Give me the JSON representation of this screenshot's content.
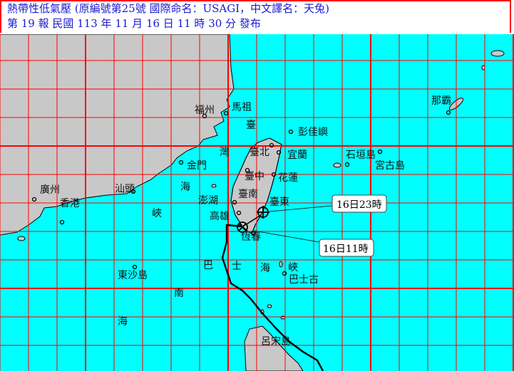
{
  "header": {
    "line1": "熱帶性低氣壓 (原編號第25號  國際命名：USAGI，中文譯名：天兔)",
    "line2": "第 19 報  民國 113 年 11 月 16 日 11 時 30 分 發布"
  },
  "colors": {
    "sea": "#00ffff",
    "land": "#c8c8c8",
    "grid": "#ff0000",
    "header_text": "#1a1ad0",
    "track": "#000000"
  },
  "places": {
    "fuzhou": "福州",
    "mazu": "馬祖",
    "kinmen": "金門",
    "penghu": "澎湖",
    "taipei": "臺北",
    "yilan": "宜蘭",
    "taichung": "臺中",
    "hualien": "花蓮",
    "tainan": "臺南",
    "taitung": "臺東",
    "kaohsiung": "高雄",
    "hengchun": "恆春",
    "pengjia": "彭佳嶼",
    "ishigaki": "石垣島",
    "miyako": "宮古島",
    "naha": "那霸",
    "guangzhou": "廣州",
    "hongkong": "香港",
    "shantou": "汕頭",
    "dongsha": "東沙島",
    "basco": "巴士古",
    "luzon": "呂宋島"
  },
  "sea_labels": {
    "strait": [
      "臺",
      "灣",
      "海",
      "峽"
    ],
    "bashi": [
      "巴",
      "士",
      "海",
      "峽"
    ],
    "south_sea": [
      "南",
      "海"
    ]
  },
  "track": {
    "current_label": "16日11時",
    "forecast_label": "16日23時",
    "current_icon": "circle-x-icon",
    "forecast_icon": "circle-plus-icon"
  }
}
